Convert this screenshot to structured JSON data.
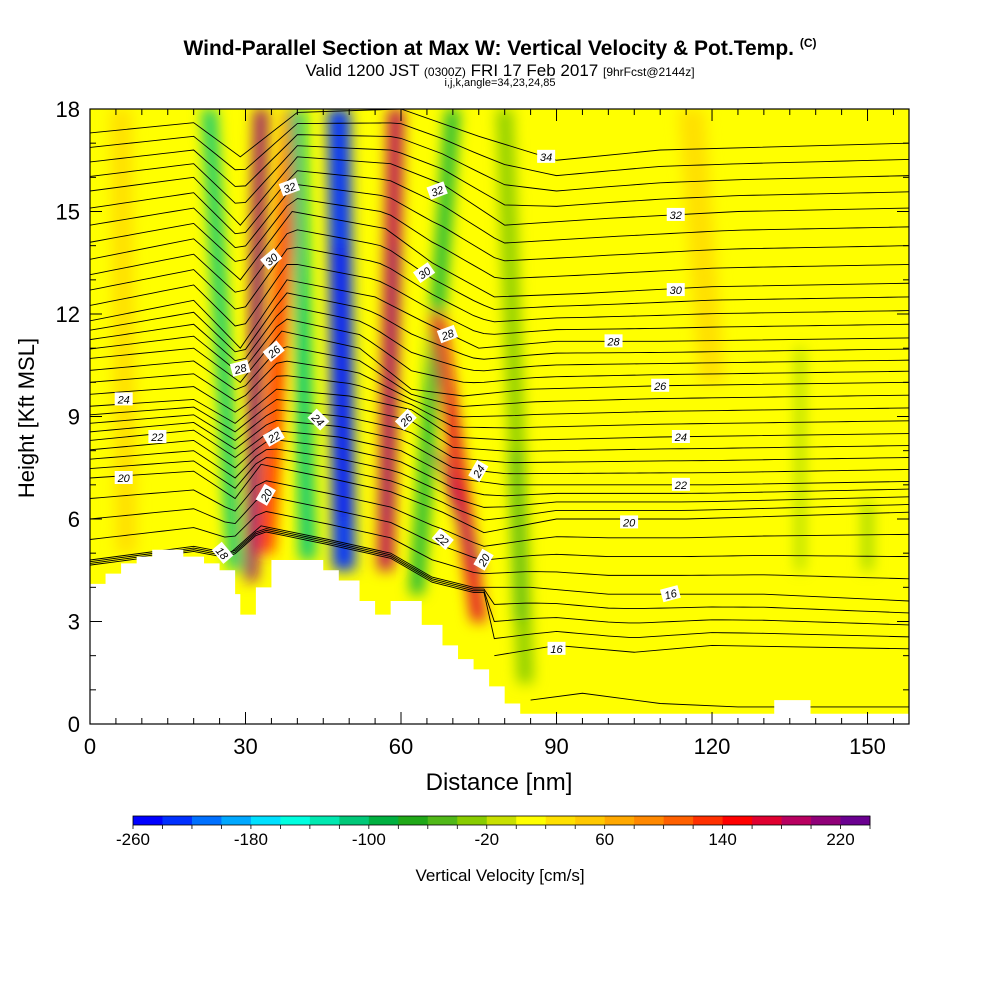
{
  "title": {
    "main": "Wind-Parallel Section at Max W: Vertical Velocity & Pot.Temp.",
    "main_mark": "(C)",
    "valid_a": "Valid 1200 JST",
    "valid_utc": "(0300Z)",
    "valid_b": "FRI 17 Feb 2017",
    "fcst": "[9hrFcst@2144z]",
    "indices": "i,j,k,angle=34,23,24,85"
  },
  "chart_data": {
    "type": "heatmap",
    "xlabel": "Distance [nm]",
    "ylabel": "Height [Kft MSL]",
    "xlim": [
      0,
      158
    ],
    "ylim": [
      0,
      18
    ],
    "x_ticks": [
      "0",
      "30",
      "60",
      "90",
      "120",
      "150"
    ],
    "y_ticks": [
      "0",
      "3",
      "6",
      "9",
      "12",
      "15",
      "18"
    ],
    "colorbar": {
      "label": "Vertical Velocity [cm/s]",
      "min": -260,
      "max": 240,
      "step": 20,
      "tick_labels": [
        "-260",
        "-180",
        "-100",
        "-20",
        "60",
        "140",
        "220"
      ],
      "colors": [
        "#0000ff",
        "#0030ff",
        "#0070ff",
        "#00a8ff",
        "#00e0ff",
        "#00ffe0",
        "#00e8b0",
        "#00c878",
        "#00b040",
        "#20a818",
        "#50b818",
        "#88cc00",
        "#c8e000",
        "#ffff00",
        "#ffe000",
        "#ffc800",
        "#ffa800",
        "#ff8800",
        "#ff6000",
        "#ff3000",
        "#ff0000",
        "#e00030",
        "#b80060",
        "#900078",
        "#6a0090"
      ]
    },
    "terrain": {
      "x": [
        0,
        3,
        3,
        6,
        6,
        9,
        9,
        12,
        12,
        18,
        18,
        22,
        22,
        25,
        25,
        28,
        28,
        29,
        29,
        32,
        32,
        35,
        35,
        45,
        45,
        48,
        48,
        52,
        52,
        55,
        55,
        58,
        58,
        64,
        64,
        68,
        68,
        71,
        71,
        74,
        74,
        77,
        77,
        80,
        80,
        83,
        83,
        86,
        86,
        88,
        88,
        91,
        91,
        132,
        132,
        139,
        139,
        158
      ],
      "y": [
        4.1,
        4.1,
        4.4,
        4.4,
        4.7,
        4.7,
        4.9,
        4.9,
        5.1,
        5.1,
        4.9,
        4.9,
        4.7,
        4.7,
        4.5,
        4.5,
        3.8,
        3.8,
        3.2,
        3.2,
        4.0,
        4.0,
        4.8,
        4.8,
        4.5,
        4.5,
        4.2,
        4.2,
        3.6,
        3.6,
        3.2,
        3.2,
        3.6,
        3.6,
        2.9,
        2.9,
        2.3,
        2.3,
        1.9,
        1.9,
        1.6,
        1.6,
        1.1,
        1.1,
        0.6,
        0.6,
        0.3,
        0.3,
        0.3,
        0.3,
        0.3,
        0.3,
        0.3,
        0.3,
        0.7,
        0.7,
        0.3,
        0.3
      ]
    },
    "w_features": [
      {
        "x_bottom": 28,
        "x_top": 23,
        "y_bottom": 4.5,
        "y_top": 18,
        "width": 2.6,
        "w": -120
      },
      {
        "x_bottom": 31,
        "x_top": 33,
        "y_bottom": 4.2,
        "y_top": 18,
        "width": 2.4,
        "w": 210
      },
      {
        "x_bottom": 34,
        "x_top": 39,
        "y_bottom": 5.0,
        "y_top": 18,
        "width": 3.0,
        "w": 120
      },
      {
        "x_bottom": 42,
        "x_top": 40,
        "y_bottom": 4.8,
        "y_top": 18,
        "width": 3.0,
        "w": -110
      },
      {
        "x_bottom": 49,
        "x_top": 48,
        "y_bottom": 4.5,
        "y_top": 18,
        "width": 4.2,
        "w": -240
      },
      {
        "x_bottom": 57,
        "x_top": 59,
        "y_bottom": 4.5,
        "y_top": 18,
        "width": 2.8,
        "w": 180
      },
      {
        "x_bottom": 63,
        "x_top": 70,
        "y_bottom": 3.8,
        "y_top": 18,
        "width": 2.4,
        "w": -90
      },
      {
        "x_bottom": 75,
        "x_top": 67,
        "y_bottom": 3.0,
        "y_top": 12,
        "width": 2.6,
        "w": 170
      },
      {
        "x_bottom": 84,
        "x_top": 80,
        "y_bottom": 1.2,
        "y_top": 18,
        "width": 3.0,
        "w": -40
      },
      {
        "x_bottom": 83,
        "x_top": 82,
        "y_bottom": 3.0,
        "y_top": 8,
        "width": 2.0,
        "w": -60
      },
      {
        "x_bottom": 137,
        "x_top": 137,
        "y_bottom": 4.5,
        "y_top": 11,
        "width": 1.2,
        "w": -30
      },
      {
        "x_bottom": 150,
        "x_top": 150,
        "y_bottom": 4.5,
        "y_top": 6.5,
        "width": 1.6,
        "w": -40
      },
      {
        "x_bottom": 7,
        "x_top": 6,
        "y_bottom": 5,
        "y_top": 18,
        "width": 4,
        "w": 20
      },
      {
        "x_bottom": 120,
        "x_top": 116,
        "y_bottom": 10,
        "y_top": 18,
        "width": 5,
        "w": 25
      }
    ],
    "theta_contours": [
      {
        "value": 16,
        "base": [
          [
            85,
            0.7
          ],
          [
            95,
            0.9
          ],
          [
            110,
            0.6
          ],
          [
            125,
            0.5
          ],
          [
            158,
            0.5
          ]
        ]
      },
      {
        "value": 16,
        "base": [
          [
            78,
            2.0
          ],
          [
            90,
            2.3
          ],
          [
            105,
            2.1
          ],
          [
            120,
            2.3
          ],
          [
            158,
            2.2
          ]
        ]
      },
      {
        "value": 18,
        "base": [
          [
            0,
            4.8
          ],
          [
            20,
            5.2
          ],
          [
            27,
            5.0
          ],
          [
            33,
            5.8
          ],
          [
            46,
            5.4
          ],
          [
            58,
            5.0
          ],
          [
            66,
            4.3
          ],
          [
            74,
            4.0
          ],
          [
            85,
            4.0
          ],
          [
            100,
            3.8
          ],
          [
            115,
            3.8
          ],
          [
            130,
            3.8
          ],
          [
            158,
            3.6
          ]
        ]
      },
      {
        "value": 20,
        "base": [
          [
            0,
            7.2
          ],
          [
            20,
            7.4
          ],
          [
            28,
            6.6
          ],
          [
            33,
            7.6
          ],
          [
            46,
            7.2
          ],
          [
            58,
            6.8
          ],
          [
            68,
            6.2
          ],
          [
            76,
            5.6
          ],
          [
            90,
            6.0
          ],
          [
            115,
            6.0
          ],
          [
            158,
            6.2
          ]
        ]
      },
      {
        "value": 22,
        "base": [
          [
            0,
            8.3
          ],
          [
            20,
            8.6
          ],
          [
            28,
            7.8
          ],
          [
            35,
            8.6
          ],
          [
            48,
            8.4
          ],
          [
            60,
            8.0
          ],
          [
            70,
            7.2
          ],
          [
            80,
            7.0
          ],
          [
            95,
            7.0
          ],
          [
            120,
            7.0
          ],
          [
            158,
            7.1
          ]
        ]
      },
      {
        "value": 24,
        "base": [
          [
            0,
            9.3
          ],
          [
            20,
            9.5
          ],
          [
            28,
            8.8
          ],
          [
            36,
            9.8
          ],
          [
            50,
            9.6
          ],
          [
            62,
            9.2
          ],
          [
            70,
            8.4
          ],
          [
            82,
            8.3
          ],
          [
            110,
            8.4
          ],
          [
            158,
            8.5
          ]
        ]
      },
      {
        "value": 26,
        "base": [
          [
            0,
            10.7
          ],
          [
            20,
            11.0
          ],
          [
            29,
            10.0
          ],
          [
            37,
            11.5
          ],
          [
            52,
            11.0
          ],
          [
            62,
            9.8
          ],
          [
            72,
            9.6
          ],
          [
            85,
            9.8
          ],
          [
            110,
            9.9
          ],
          [
            158,
            10.0
          ]
        ]
      },
      {
        "value": 28,
        "base": [
          [
            0,
            11.8
          ],
          [
            20,
            12.4
          ],
          [
            29,
            11.0
          ],
          [
            38,
            13.0
          ],
          [
            55,
            12.5
          ],
          [
            64,
            11.8
          ],
          [
            75,
            11.0
          ],
          [
            90,
            11.2
          ],
          [
            110,
            11.2
          ],
          [
            158,
            11.3
          ]
        ]
      },
      {
        "value": 30,
        "base": [
          [
            0,
            13.6
          ],
          [
            20,
            14.2
          ],
          [
            29,
            13.0
          ],
          [
            39,
            15.0
          ],
          [
            57,
            14.5
          ],
          [
            66,
            13.5
          ],
          [
            78,
            12.5
          ],
          [
            95,
            12.6
          ],
          [
            120,
            12.8
          ],
          [
            158,
            12.9
          ]
        ]
      },
      {
        "value": 32,
        "base": [
          [
            0,
            15.6
          ],
          [
            20,
            16.0
          ],
          [
            29,
            14.6
          ],
          [
            40,
            16.6
          ],
          [
            58,
            16.4
          ],
          [
            68,
            15.8
          ],
          [
            80,
            14.6
          ],
          [
            100,
            14.8
          ],
          [
            125,
            15.0
          ],
          [
            158,
            15.1
          ]
        ]
      },
      {
        "value": 34,
        "base": [
          [
            0,
            17.3
          ],
          [
            20,
            17.6
          ],
          [
            29,
            16.6
          ],
          [
            40,
            17.9
          ],
          [
            60,
            18.0
          ],
          [
            75,
            17.2
          ],
          [
            90,
            16.5
          ],
          [
            110,
            16.8
          ],
          [
            158,
            17.0
          ]
        ]
      }
    ],
    "contour_labels": [
      {
        "text": "34",
        "x": 88,
        "y": 16.6,
        "rot": 0
      },
      {
        "text": "32",
        "x": 38.5,
        "y": 15.7,
        "rot": -20
      },
      {
        "text": "32",
        "x": 67,
        "y": 15.6,
        "rot": -20
      },
      {
        "text": "32",
        "x": 113,
        "y": 14.9,
        "rot": 0
      },
      {
        "text": "30",
        "x": 35,
        "y": 13.6,
        "rot": -40
      },
      {
        "text": "30",
        "x": 64.5,
        "y": 13.2,
        "rot": -35
      },
      {
        "text": "30",
        "x": 113,
        "y": 12.7,
        "rot": 0
      },
      {
        "text": "28",
        "x": 69,
        "y": 11.4,
        "rot": -20
      },
      {
        "text": "28",
        "x": 101,
        "y": 11.2,
        "rot": 0
      },
      {
        "text": "28",
        "x": 29,
        "y": 10.4,
        "rot": -15
      },
      {
        "text": "26",
        "x": 35.5,
        "y": 10.9,
        "rot": -40
      },
      {
        "text": "26",
        "x": 110,
        "y": 9.9,
        "rot": 0
      },
      {
        "text": "26",
        "x": 61,
        "y": 8.9,
        "rot": -45
      },
      {
        "text": "24",
        "x": 6.5,
        "y": 9.5,
        "rot": 0
      },
      {
        "text": "24",
        "x": 44,
        "y": 8.9,
        "rot": 45
      },
      {
        "text": "24",
        "x": 114,
        "y": 8.4,
        "rot": 0
      },
      {
        "text": "24",
        "x": 75,
        "y": 7.4,
        "rot": -60
      },
      {
        "text": "22",
        "x": 13,
        "y": 8.4,
        "rot": 0
      },
      {
        "text": "22",
        "x": 35.5,
        "y": 8.4,
        "rot": -30
      },
      {
        "text": "22",
        "x": 114,
        "y": 7.0,
        "rot": 0
      },
      {
        "text": "22",
        "x": 68,
        "y": 5.4,
        "rot": 40
      },
      {
        "text": "20",
        "x": 6.5,
        "y": 7.2,
        "rot": 0
      },
      {
        "text": "20",
        "x": 34,
        "y": 6.7,
        "rot": -60
      },
      {
        "text": "20",
        "x": 104,
        "y": 5.9,
        "rot": 0
      },
      {
        "text": "20",
        "x": 76,
        "y": 4.8,
        "rot": -60
      },
      {
        "text": "18",
        "x": 25.5,
        "y": 5.0,
        "rot": 50
      },
      {
        "text": "16",
        "x": 112,
        "y": 3.8,
        "rot": -15
      },
      {
        "text": "16",
        "x": 90,
        "y": 2.2,
        "rot": 0
      }
    ]
  }
}
